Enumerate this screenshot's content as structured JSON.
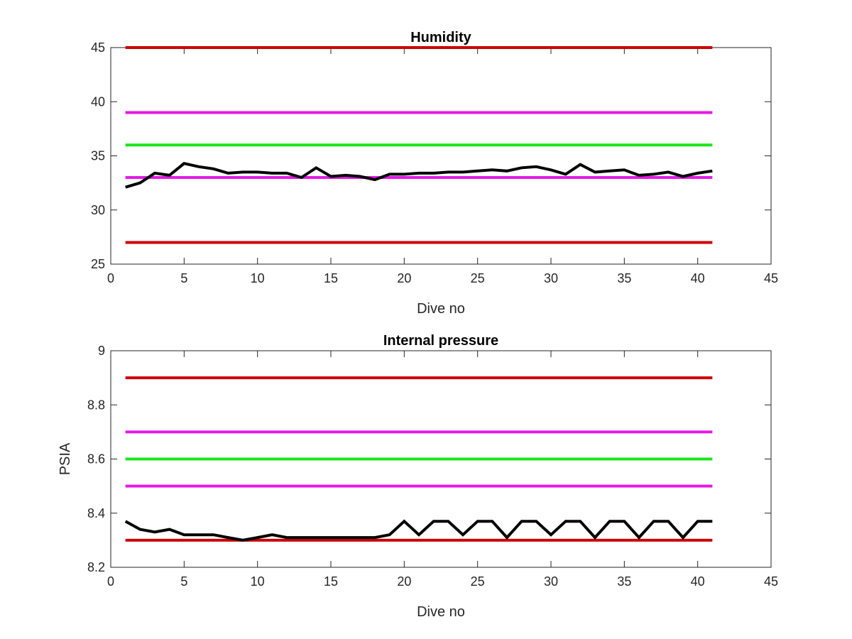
{
  "chart_data": [
    {
      "type": "line",
      "title": "Humidity",
      "xlabel": "Dive no",
      "ylabel": "",
      "xlim": [
        0,
        45
      ],
      "ylim": [
        25,
        45
      ],
      "xticks": [
        0,
        5,
        10,
        15,
        20,
        25,
        30,
        35,
        40,
        45
      ],
      "yticks": [
        25,
        30,
        35,
        40,
        45
      ],
      "grid": false,
      "threshold_lines": [
        {
          "y": 45,
          "color": "#cc0000"
        },
        {
          "y": 39,
          "color": "#e619e6"
        },
        {
          "y": 36,
          "color": "#19e619"
        },
        {
          "y": 33,
          "color": "#e619e6"
        },
        {
          "y": 27,
          "color": "#cc0000"
        }
      ],
      "series": [
        {
          "color": "#000000",
          "x": [
            1,
            2,
            3,
            4,
            5,
            6,
            7,
            8,
            9,
            10,
            11,
            12,
            13,
            14,
            15,
            16,
            17,
            18,
            19,
            20,
            21,
            22,
            23,
            24,
            25,
            26,
            27,
            28,
            29,
            30,
            31,
            32,
            33,
            34,
            35,
            36,
            37,
            38,
            39,
            40,
            41
          ],
          "y": [
            32.1,
            32.5,
            33.4,
            33.2,
            34.3,
            34.0,
            33.8,
            33.4,
            33.5,
            33.5,
            33.4,
            33.4,
            33.0,
            33.9,
            33.1,
            33.2,
            33.1,
            32.8,
            33.3,
            33.3,
            33.4,
            33.4,
            33.5,
            33.5,
            33.6,
            33.7,
            33.6,
            33.9,
            34.0,
            33.7,
            33.3,
            34.2,
            33.5,
            33.6,
            33.7,
            33.2,
            33.3,
            33.5,
            33.1,
            33.4,
            33.6
          ]
        }
      ]
    },
    {
      "type": "line",
      "title": "Internal pressure",
      "xlabel": "Dive no",
      "ylabel": "PSIA",
      "xlim": [
        0,
        45
      ],
      "ylim": [
        8.2,
        9
      ],
      "xticks": [
        0,
        5,
        10,
        15,
        20,
        25,
        30,
        35,
        40,
        45
      ],
      "yticks": [
        8.2,
        8.4,
        8.6,
        8.8,
        9
      ],
      "grid": false,
      "threshold_lines": [
        {
          "y": 8.9,
          "color": "#cc0000"
        },
        {
          "y": 8.7,
          "color": "#e619e6"
        },
        {
          "y": 8.6,
          "color": "#19e619"
        },
        {
          "y": 8.5,
          "color": "#e619e6"
        },
        {
          "y": 8.3,
          "color": "#cc0000"
        }
      ],
      "series": [
        {
          "color": "#000000",
          "x": [
            1,
            2,
            3,
            4,
            5,
            6,
            7,
            8,
            9,
            10,
            11,
            12,
            13,
            14,
            15,
            16,
            17,
            18,
            19,
            20,
            21,
            22,
            23,
            24,
            25,
            26,
            27,
            28,
            29,
            30,
            31,
            32,
            33,
            34,
            35,
            36,
            37,
            38,
            39,
            40,
            41
          ],
          "y": [
            8.37,
            8.34,
            8.33,
            8.34,
            8.32,
            8.32,
            8.32,
            8.31,
            8.3,
            8.31,
            8.32,
            8.31,
            8.31,
            8.31,
            8.31,
            8.31,
            8.31,
            8.31,
            8.32,
            8.37,
            8.32,
            8.37,
            8.37,
            8.32,
            8.37,
            8.37,
            8.31,
            8.37,
            8.37,
            8.32,
            8.37,
            8.37,
            8.31,
            8.37,
            8.37,
            8.31,
            8.37,
            8.37,
            8.31,
            8.37,
            8.37
          ]
        }
      ]
    }
  ]
}
